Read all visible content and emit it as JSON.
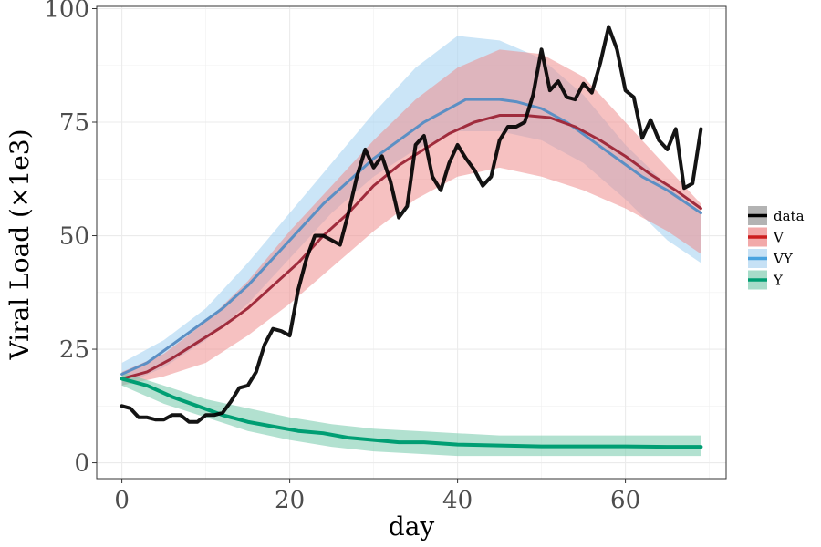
{
  "chart_data": {
    "type": "line",
    "xlabel": "day",
    "ylabel": "Viral Load (×1e3)",
    "xlim": [
      -3,
      72
    ],
    "ylim": [
      -3.5,
      100.5
    ],
    "xticks": [
      0,
      20,
      40,
      60
    ],
    "yticks": [
      0,
      25,
      50,
      75,
      100
    ],
    "xminor": [
      10,
      30,
      50,
      70
    ],
    "yminor": [
      12.5,
      37.5,
      62.5,
      87.5
    ],
    "grid": true,
    "legend_position": "right",
    "legend": [
      {
        "key": "data",
        "label": "data",
        "line_color": "#000000",
        "fill_color": "#b3b3b3"
      },
      {
        "key": "V",
        "label": "V",
        "line_color": "#cc1f1f",
        "fill_color": "#f2a9a9"
      },
      {
        "key": "VY",
        "label": "VY",
        "line_color": "#4aa3df",
        "fill_color": "#c6e1f5"
      },
      {
        "key": "Y",
        "label": "Y",
        "line_color": "#009e73",
        "fill_color": "#a7dcc9"
      }
    ],
    "bands": [
      {
        "series": "VY",
        "color": "#a8d3f2",
        "opacity": 0.6,
        "x": [
          0,
          5,
          10,
          15,
          20,
          25,
          30,
          35,
          40,
          45,
          50,
          55,
          60,
          65,
          69
        ],
        "upper": [
          22,
          27,
          34,
          44,
          55,
          66,
          77,
          87,
          94,
          93,
          89,
          81,
          70,
          61,
          55
        ],
        "lower": [
          17,
          21,
          27,
          35,
          45,
          55,
          63,
          69,
          73,
          73,
          71,
          66,
          58,
          49,
          44
        ]
      },
      {
        "series": "V",
        "color": "#ee8e8e",
        "opacity": 0.55,
        "x": [
          0,
          5,
          10,
          15,
          20,
          25,
          30,
          35,
          40,
          45,
          50,
          55,
          60,
          65,
          69
        ],
        "upper": [
          20,
          24,
          31,
          40,
          51,
          61,
          71,
          80,
          87,
          91,
          90,
          85,
          75,
          65,
          57
        ],
        "lower": [
          17,
          19,
          22,
          28,
          35,
          43,
          51,
          58,
          63,
          65,
          63,
          60,
          56,
          51,
          46
        ]
      },
      {
        "series": "Y",
        "color": "#7fcdb1",
        "opacity": 0.6,
        "x": [
          0,
          5,
          10,
          15,
          20,
          25,
          30,
          35,
          40,
          45,
          50,
          55,
          60,
          65,
          69
        ],
        "upper": [
          20,
          17,
          14,
          12,
          10,
          8.5,
          7.5,
          7,
          6.5,
          6,
          6,
          6,
          6,
          6,
          6
        ],
        "lower": [
          17,
          13,
          10,
          7,
          5,
          3.5,
          2.5,
          2,
          1.5,
          1.5,
          1.5,
          1.5,
          1.5,
          1.5,
          1.5
        ]
      }
    ],
    "series": [
      {
        "name": "VY",
        "color": "#5b8fc4",
        "width": 3,
        "x": [
          0,
          3,
          6,
          9,
          12,
          15,
          18,
          21,
          24,
          27,
          30,
          33,
          36,
          39,
          41,
          43,
          45,
          47,
          50,
          53,
          56,
          59,
          62,
          65,
          69
        ],
        "y": [
          19.5,
          22,
          26,
          30,
          34,
          39,
          45,
          51,
          57,
          62,
          67,
          71,
          75,
          78,
          80,
          80,
          80,
          79.5,
          78,
          75,
          71,
          67,
          63,
          60,
          55
        ]
      },
      {
        "name": "V",
        "color": "#a02c3d",
        "width": 3,
        "x": [
          0,
          3,
          6,
          9,
          12,
          15,
          18,
          21,
          24,
          27,
          30,
          33,
          36,
          39,
          42,
          45,
          48,
          51,
          54,
          57,
          60,
          63,
          66,
          69
        ],
        "y": [
          18.5,
          20,
          23,
          26.5,
          30,
          34,
          39,
          44,
          50,
          55,
          61,
          65.5,
          69,
          72.5,
          75,
          76.5,
          76.5,
          76,
          74,
          71,
          67.5,
          63.5,
          60,
          56
        ]
      },
      {
        "name": "Y",
        "color": "#009e73",
        "width": 4,
        "x": [
          0,
          3,
          6,
          9,
          12,
          15,
          18,
          21,
          24,
          27,
          30,
          33,
          36,
          40,
          45,
          50,
          55,
          60,
          65,
          69
        ],
        "y": [
          18.5,
          17,
          14.5,
          12.5,
          10.5,
          9,
          8,
          7,
          6.5,
          5.5,
          5,
          4.5,
          4.5,
          4,
          3.8,
          3.6,
          3.6,
          3.6,
          3.5,
          3.5
        ]
      },
      {
        "name": "data",
        "color": "#000000",
        "width": 4,
        "x": [
          0,
          1,
          2,
          3,
          4,
          5,
          6,
          7,
          8,
          9,
          10,
          11,
          12,
          13,
          14,
          15,
          16,
          17,
          18,
          19,
          20,
          21,
          22,
          23,
          24,
          25,
          26,
          27,
          28,
          29,
          30,
          31,
          32,
          33,
          34,
          35,
          36,
          37,
          38,
          39,
          40,
          41,
          42,
          43,
          44,
          45,
          46,
          47,
          48,
          49,
          50,
          51,
          52,
          53,
          54,
          55,
          56,
          57,
          58,
          59,
          60,
          61,
          62,
          63,
          64,
          65,
          66,
          67,
          68,
          69
        ],
        "y": [
          12.5,
          12,
          10,
          10,
          9.5,
          9.5,
          10.5,
          10.5,
          9,
          9,
          10.5,
          10.5,
          11,
          13.5,
          16.5,
          17,
          20,
          26,
          29.5,
          29,
          28,
          38,
          45,
          50,
          50,
          49,
          48,
          55,
          63,
          69,
          65,
          67.5,
          62,
          54,
          56.5,
          70,
          72,
          63,
          60,
          66,
          70,
          67,
          64.5,
          61,
          63,
          71,
          74,
          74,
          75,
          81,
          91,
          82,
          84,
          80.5,
          80,
          83.5,
          81.5,
          88,
          96,
          91,
          82,
          80.5,
          71.5,
          75.5,
          71,
          69,
          73.5,
          60.5,
          61.5,
          73.5
        ]
      }
    ]
  }
}
